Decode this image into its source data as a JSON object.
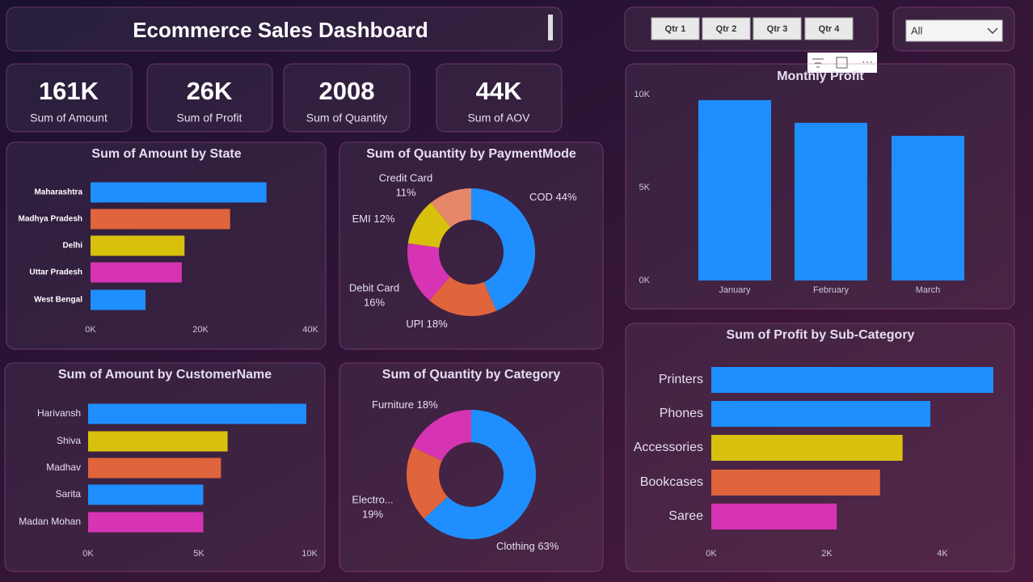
{
  "header": {
    "title": "Ecommerce Sales Dashboard"
  },
  "kpis": [
    {
      "value": "161K",
      "label": "Sum of Amount"
    },
    {
      "value": "26K",
      "label": "Sum of Profit"
    },
    {
      "value": "2008",
      "label": "Sum of Quantity"
    },
    {
      "value": "44K",
      "label": "Sum of AOV"
    }
  ],
  "slicer": {
    "buttons": [
      "Qtr 1",
      "Qtr 2",
      "Qtr 3",
      "Qtr 4"
    ],
    "dropdown": "All"
  },
  "chart_data": [
    {
      "type": "hbar",
      "title": "Sum of Amount by State",
      "categories": [
        "Maharashtra",
        "Madhya Pradesh",
        "Delhi",
        "Uttar Pradesh",
        "West Bengal"
      ],
      "values": [
        32000,
        25400,
        17100,
        16600,
        10000
      ],
      "colors": [
        "#1f8fff",
        "#e0643c",
        "#d8c10c",
        "#d634b2",
        "#1f8fff"
      ],
      "xlim": [
        0,
        40000
      ],
      "xticks": [
        {
          "value": 0,
          "label": "0K"
        },
        {
          "value": 20000,
          "label": "20K"
        },
        {
          "value": 40000,
          "label": "40K"
        }
      ]
    },
    {
      "type": "donut",
      "title": "Sum of Quantity by PaymentMode",
      "categories": [
        "COD",
        "UPI",
        "Debit Card",
        "EMI",
        "Credit Card"
      ],
      "values": [
        44,
        18,
        16,
        12,
        11
      ],
      "value_labels": [
        "44%",
        "18%",
        "16%",
        "12%",
        "11%"
      ],
      "colors": [
        "#1f8fff",
        "#e0643c",
        "#d634b2",
        "#d8c10c",
        "#e6876a"
      ]
    },
    {
      "type": "hbar",
      "title": "Sum of Amount by CustomerName",
      "categories": [
        "Harivansh",
        "Shiva",
        "Madhav",
        "Sarita",
        "Madan Mohan"
      ],
      "values": [
        9850,
        6300,
        6000,
        5200,
        5200
      ],
      "colors": [
        "#1f8fff",
        "#d8c10c",
        "#e0643c",
        "#1f8fff",
        "#d634b2"
      ],
      "xlim": [
        0,
        10000
      ],
      "xticks": [
        {
          "value": 0,
          "label": "0K"
        },
        {
          "value": 5000,
          "label": "5K"
        },
        {
          "value": 10000,
          "label": "10K"
        }
      ]
    },
    {
      "type": "donut",
      "title": "Sum of Quantity by Category",
      "categories": [
        "Clothing",
        "Electro...",
        "Furniture"
      ],
      "values": [
        63,
        19,
        18
      ],
      "value_labels": [
        "63%",
        "19%",
        "18%"
      ],
      "colors": [
        "#1f8fff",
        "#e0643c",
        "#d634b2"
      ]
    },
    {
      "type": "column",
      "title": "Monthly Profit",
      "categories": [
        "January",
        "February",
        "March"
      ],
      "values": [
        9700,
        8480,
        7780
      ],
      "color": "#1f8fff",
      "ylim": [
        0,
        10000
      ],
      "yticks": [
        {
          "value": 0,
          "label": "0K"
        },
        {
          "value": 5000,
          "label": "5K"
        },
        {
          "value": 10000,
          "label": "10K"
        }
      ]
    },
    {
      "type": "hbar",
      "title": "Sum of Profit by Sub-Category",
      "categories": [
        "Printers",
        "Phones",
        "Accessories",
        "Bookcases",
        "Saree"
      ],
      "values": [
        4880,
        3790,
        3310,
        2920,
        2170
      ],
      "colors": [
        "#1f8fff",
        "#1f8fff",
        "#d8c10c",
        "#e0643c",
        "#d634b2"
      ],
      "xlim": [
        0,
        5000
      ],
      "xticks": [
        {
          "value": 0,
          "label": "0K"
        },
        {
          "value": 2000,
          "label": "2K"
        },
        {
          "value": 4000,
          "label": "4K"
        }
      ]
    }
  ]
}
